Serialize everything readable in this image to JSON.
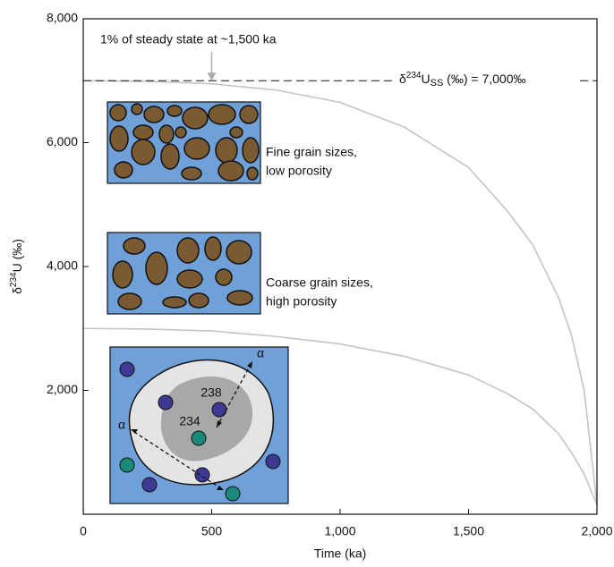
{
  "chart_data": {
    "type": "line",
    "x_label": "Time (ka)",
    "y_label_parts": [
      "δ",
      "234",
      "U (‰)"
    ],
    "x": [
      0,
      250,
      500,
      750,
      1000,
      1250,
      1500,
      1650,
      1750,
      1850,
      1900,
      1950,
      2000
    ],
    "series": [
      {
        "color": "#c4c4c4",
        "values": [
          7000,
          6990,
          6950,
          6850,
          6650,
          6250,
          5600,
          4900,
          4350,
          3500,
          2900,
          2000,
          150
        ]
      },
      {
        "color": "#c4c4c4",
        "values": [
          3000,
          2990,
          2960,
          2870,
          2750,
          2550,
          2250,
          1950,
          1700,
          1300,
          1000,
          650,
          150
        ]
      }
    ],
    "xlim": [
      0,
      2000
    ],
    "ylim": [
      0,
      8000
    ],
    "xticks": [
      0,
      500,
      {
        "value": 1000,
        "label": "1,000"
      },
      {
        "value": 1500,
        "label": "1,500"
      },
      {
        "value": 2000,
        "label": "2,000"
      }
    ],
    "yticks": [
      {
        "value": 2000,
        "label": "2,000"
      },
      {
        "value": 4000,
        "label": "4,000"
      },
      {
        "value": 6000,
        "label": "6,000"
      },
      {
        "value": 8000,
        "label": "8,000"
      }
    ],
    "reference_line": {
      "value": 7000,
      "label_parts": [
        "δ",
        "234",
        "U",
        "SS",
        " (‰) = 7,000‰"
      ]
    },
    "annotation": {
      "text": "1% of steady state at ~1,500 ka",
      "x": 500
    },
    "insets": {
      "fine": [
        "Fine grain sizes,",
        "low porosity"
      ],
      "coarse": [
        "Coarse grain sizes,",
        "high porosity"
      ],
      "decay": {
        "parent": "238",
        "daughter": "234",
        "alpha": [
          "α",
          "α"
        ]
      }
    }
  }
}
